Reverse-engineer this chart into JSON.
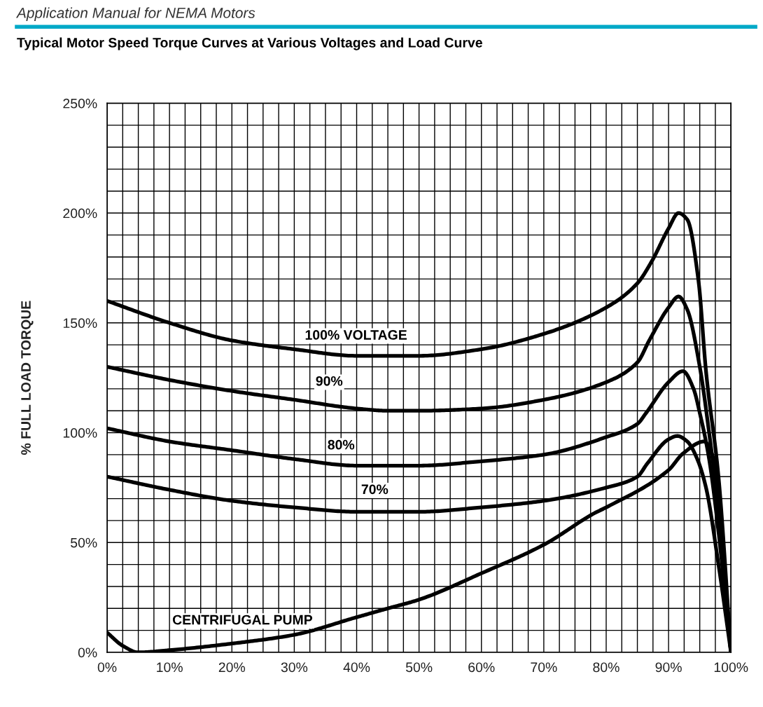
{
  "chart_data": {
    "type": "line",
    "title": "Typical Motor Speed Torque Curves at Various Voltages and Load Curve",
    "ylabel": "% FULL LOAD TORQUE",
    "xlim": [
      0,
      100
    ],
    "ylim": [
      0,
      250
    ],
    "xticks": [
      {
        "value": 0,
        "label": "0%"
      },
      {
        "value": 2.5,
        "label": null
      },
      {
        "value": 5,
        "label": null
      },
      {
        "value": 7.5,
        "label": null
      },
      {
        "value": 10,
        "label": "10%"
      },
      {
        "value": 12.5,
        "label": null
      },
      {
        "value": 15,
        "label": null
      },
      {
        "value": 17.5,
        "label": null
      },
      {
        "value": 20,
        "label": "20%"
      },
      {
        "value": 22.5,
        "label": null
      },
      {
        "value": 25,
        "label": null
      },
      {
        "value": 27.5,
        "label": null
      },
      {
        "value": 30,
        "label": "30%"
      },
      {
        "value": 32.5,
        "label": null
      },
      {
        "value": 35,
        "label": null
      },
      {
        "value": 37.5,
        "label": null
      },
      {
        "value": 40,
        "label": "40%"
      },
      {
        "value": 42.5,
        "label": null
      },
      {
        "value": 45,
        "label": null
      },
      {
        "value": 47.5,
        "label": null
      },
      {
        "value": 50,
        "label": "50%"
      },
      {
        "value": 52.5,
        "label": null
      },
      {
        "value": 55,
        "label": null
      },
      {
        "value": 57.5,
        "label": null
      },
      {
        "value": 60,
        "label": "60%"
      },
      {
        "value": 62.5,
        "label": null
      },
      {
        "value": 65,
        "label": null
      },
      {
        "value": 67.5,
        "label": null
      },
      {
        "value": 70,
        "label": "70%"
      },
      {
        "value": 72.5,
        "label": null
      },
      {
        "value": 75,
        "label": null
      },
      {
        "value": 77.5,
        "label": null
      },
      {
        "value": 80,
        "label": "80%"
      },
      {
        "value": 82.5,
        "label": null
      },
      {
        "value": 85,
        "label": null
      },
      {
        "value": 87.5,
        "label": null
      },
      {
        "value": 90,
        "label": "90%"
      },
      {
        "value": 92.5,
        "label": null
      },
      {
        "value": 95,
        "label": null
      },
      {
        "value": 97.5,
        "label": null
      },
      {
        "value": 100,
        "label": "100%"
      }
    ],
    "yticks": [
      {
        "value": 0,
        "label": "0%"
      },
      {
        "value": 10,
        "label": null
      },
      {
        "value": 20,
        "label": null
      },
      {
        "value": 30,
        "label": null
      },
      {
        "value": 40,
        "label": null
      },
      {
        "value": 50,
        "label": "50%"
      },
      {
        "value": 60,
        "label": null
      },
      {
        "value": 70,
        "label": null
      },
      {
        "value": 80,
        "label": null
      },
      {
        "value": 90,
        "label": null
      },
      {
        "value": 100,
        "label": "100%"
      },
      {
        "value": 110,
        "label": null
      },
      {
        "value": 120,
        "label": null
      },
      {
        "value": 130,
        "label": null
      },
      {
        "value": 140,
        "label": null
      },
      {
        "value": 150,
        "label": "150%"
      },
      {
        "value": 160,
        "label": null
      },
      {
        "value": 170,
        "label": null
      },
      {
        "value": 180,
        "label": null
      },
      {
        "value": 190,
        "label": null
      },
      {
        "value": 200,
        "label": "200%"
      },
      {
        "value": 210,
        "label": null
      },
      {
        "value": 220,
        "label": null
      },
      {
        "value": 230,
        "label": null
      },
      {
        "value": 240,
        "label": null
      },
      {
        "value": 250,
        "label": "250%"
      }
    ],
    "grid": true,
    "marker": "none",
    "line_style": "solid",
    "series": [
      {
        "name": "100% VOLTAGE",
        "color": "#000000",
        "x": [
          0,
          10,
          20,
          30,
          40,
          45,
          50,
          60,
          70,
          80,
          85,
          87.3,
          90,
          91.6,
          93,
          94.8,
          96,
          98,
          100
        ],
        "values": [
          160,
          150,
          142,
          138,
          135,
          135,
          135,
          138,
          145,
          157,
          168,
          178,
          193,
          200,
          197,
          169,
          128,
          80,
          0
        ]
      },
      {
        "name": "90%",
        "color": "#000000",
        "x": [
          0,
          10,
          20,
          30,
          40,
          45,
          50,
          60,
          70,
          80,
          85,
          86.9,
          90,
          91.6,
          93,
          95,
          96.5,
          98,
          100
        ],
        "values": [
          130,
          124,
          119,
          115,
          111,
          110,
          110,
          111,
          115,
          123,
          132,
          142,
          157,
          162,
          156,
          130,
          100,
          65,
          0
        ]
      },
      {
        "name": "80%",
        "color": "#000000",
        "x": [
          0,
          10,
          20,
          30,
          40,
          45,
          50,
          60,
          70,
          80,
          85,
          86.4,
          90,
          92.3,
          94,
          95,
          96.5,
          98,
          100
        ],
        "values": [
          102,
          96,
          92,
          88,
          85,
          85,
          85,
          87,
          90,
          98,
          104,
          109,
          123,
          128,
          120,
          109,
          88,
          55,
          0
        ]
      },
      {
        "name": "70%",
        "color": "#000000",
        "x": [
          0,
          10,
          20,
          30,
          40,
          45,
          50,
          60,
          70,
          80,
          85,
          86.6,
          90,
          91.4,
          93,
          94.6,
          96,
          98,
          100
        ],
        "values": [
          80,
          74,
          69,
          66,
          64,
          64,
          64,
          66,
          69,
          75,
          80,
          86,
          97,
          98.5,
          96,
          88,
          75,
          40,
          0
        ]
      },
      {
        "name": "CENTRIFUGAL PUMP",
        "color": "#000000",
        "x": [
          0,
          2.5,
          5,
          10,
          20,
          30,
          40,
          45,
          50,
          60,
          70,
          78.2,
          80,
          90,
          92.3,
          95.7,
          97,
          100
        ],
        "values": [
          9,
          3,
          0,
          1,
          4,
          8,
          16,
          20,
          24,
          36,
          49,
          63.5,
          66,
          83,
          90.5,
          96,
          90,
          0
        ]
      }
    ],
    "annotations": [
      "Application Manual for NEMA Motors"
    ]
  }
}
